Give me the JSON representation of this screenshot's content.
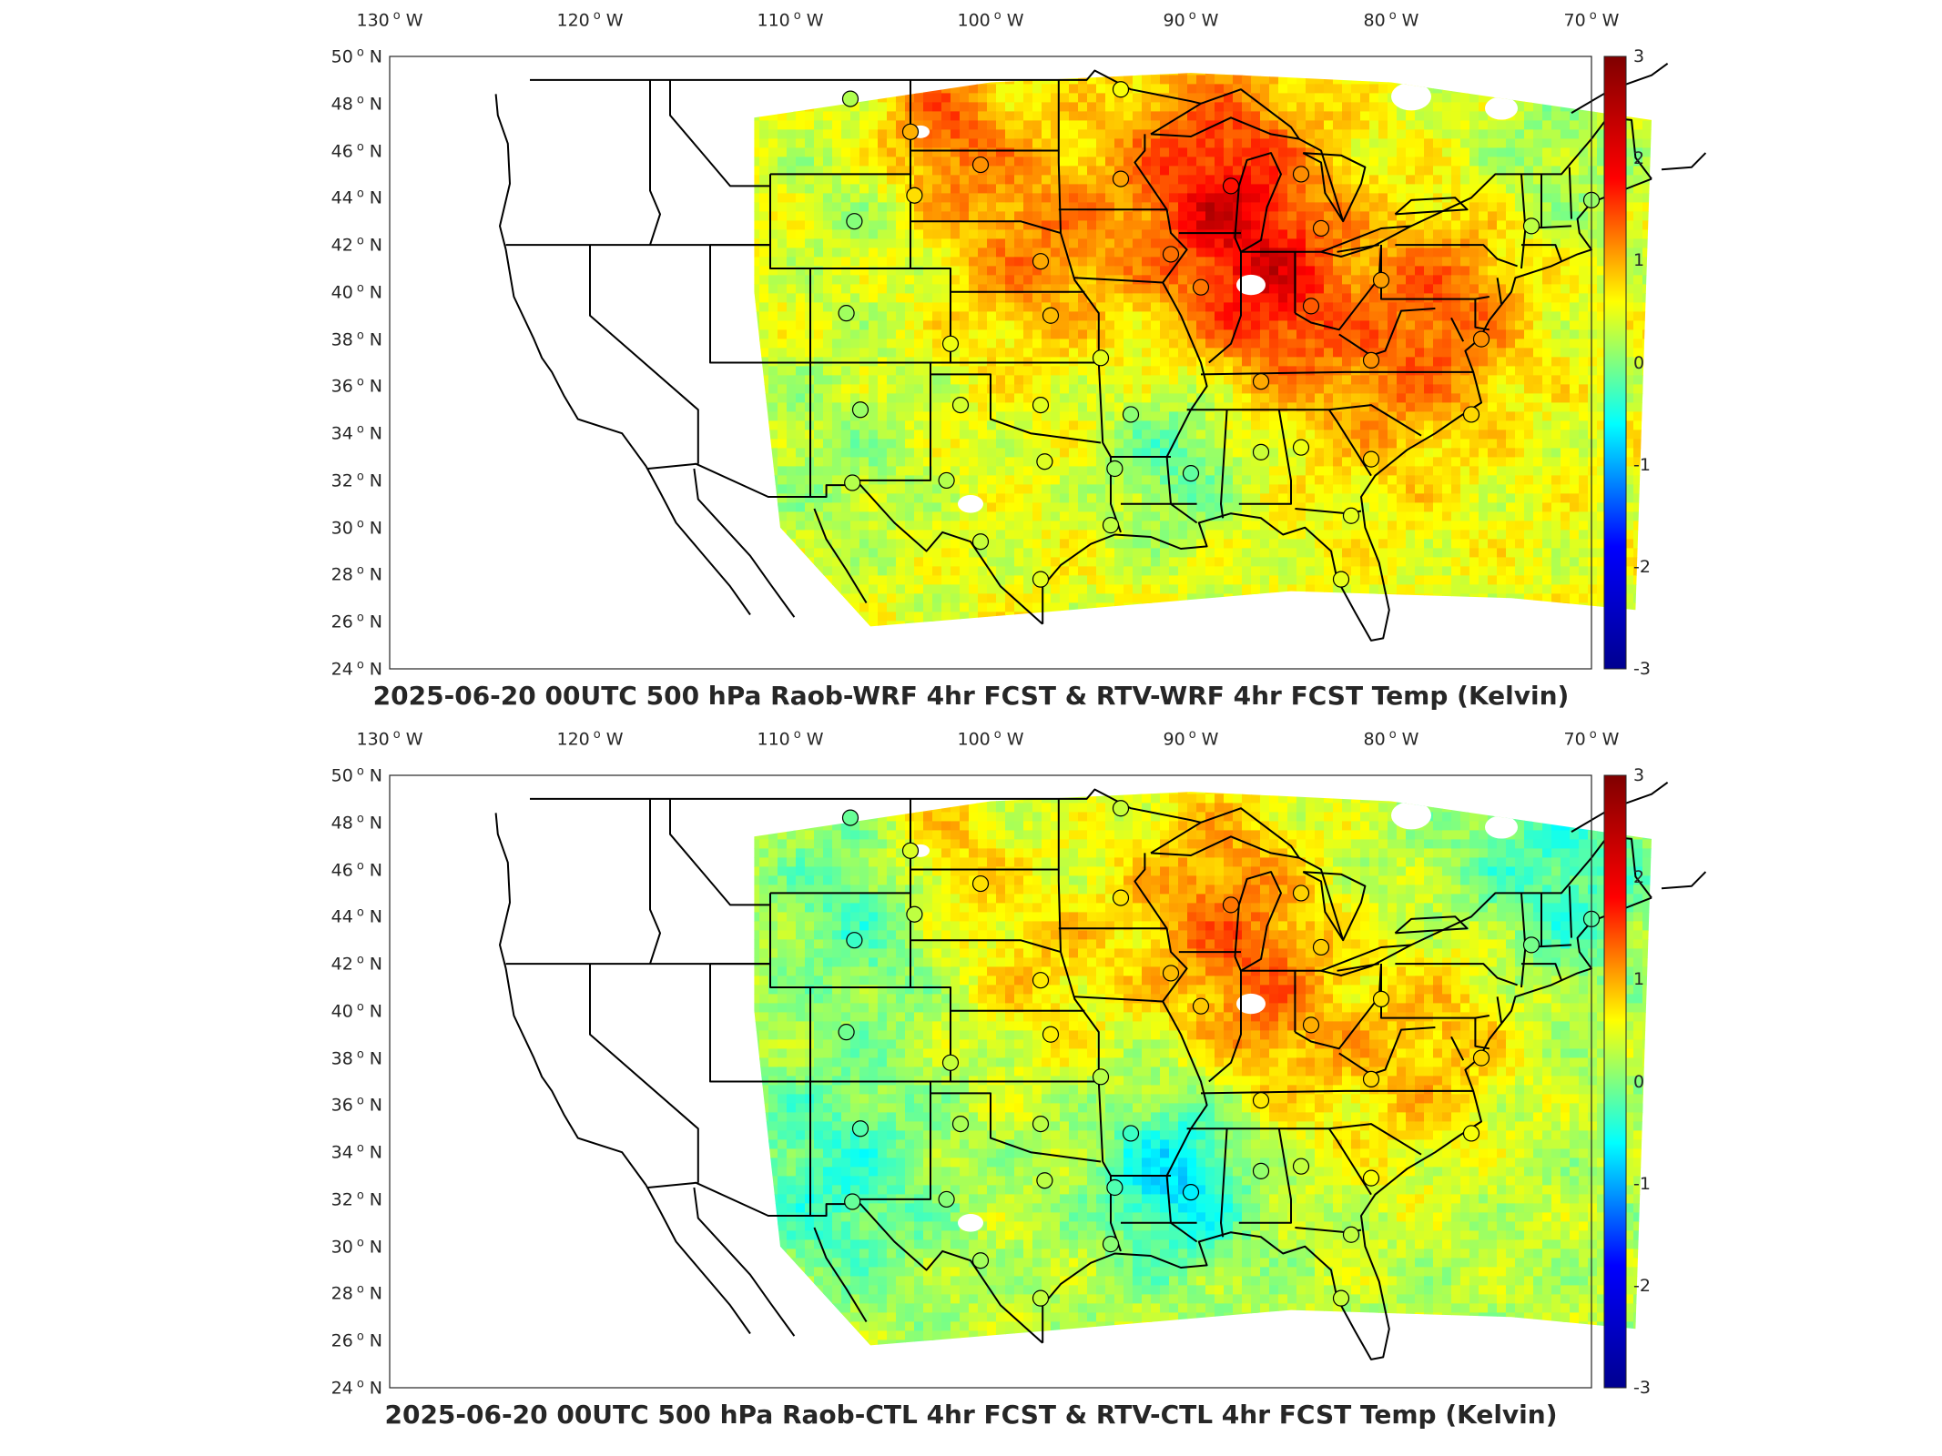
{
  "panels": [
    {
      "title": "2025-06-20 00UTC 500 hPa Raob-WRF 4hr FCST & RTV-WRF 4hr FCST Temp (Kelvin)",
      "variant": "wrf"
    },
    {
      "title": "2025-06-20 00UTC 500 hPa Raob-CTL 4hr FCST & RTV-CTL 4hr FCST Temp (Kelvin)",
      "variant": "ctl"
    }
  ],
  "map": {
    "lon_ticks": [
      "130",
      "120",
      "110",
      "100",
      "90",
      "80",
      "70"
    ],
    "lon_hemi": "W",
    "lat_ticks": [
      "50",
      "48",
      "46",
      "44",
      "42",
      "40",
      "38",
      "36",
      "34",
      "32",
      "30",
      "28",
      "26",
      "24"
    ],
    "lat_hemi": "N",
    "lon_range": [
      -130,
      -70
    ],
    "lat_range": [
      24,
      50
    ]
  },
  "colorbar": {
    "colormap": "jet",
    "ticks": [
      "3",
      "2",
      "1",
      "0",
      "-1",
      "-2",
      "-3"
    ],
    "range": [
      -3,
      3
    ],
    "colors": [
      "#00008f",
      "#0000ff",
      "#00ffff",
      "#ffff00",
      "#ff0000",
      "#800000"
    ]
  },
  "raob_sites": [
    {
      "lon": -107.0,
      "lat": 48.2
    },
    {
      "lon": -104.0,
      "lat": 46.8
    },
    {
      "lon": -100.5,
      "lat": 45.4
    },
    {
      "lon": -93.5,
      "lat": 48.6
    },
    {
      "lon": -93.5,
      "lat": 44.8
    },
    {
      "lon": -88.0,
      "lat": 44.5
    },
    {
      "lon": -84.5,
      "lat": 45.0
    },
    {
      "lon": -83.5,
      "lat": 42.7
    },
    {
      "lon": -106.8,
      "lat": 43.0
    },
    {
      "lon": -103.8,
      "lat": 44.1
    },
    {
      "lon": -97.5,
      "lat": 41.3
    },
    {
      "lon": -91.0,
      "lat": 41.6
    },
    {
      "lon": -89.5,
      "lat": 40.2
    },
    {
      "lon": -84.0,
      "lat": 39.4
    },
    {
      "lon": -80.5,
      "lat": 40.5
    },
    {
      "lon": -73.0,
      "lat": 42.8
    },
    {
      "lon": -70.0,
      "lat": 43.9
    },
    {
      "lon": -75.5,
      "lat": 38.0
    },
    {
      "lon": -107.2,
      "lat": 39.1
    },
    {
      "lon": -102.0,
      "lat": 37.8
    },
    {
      "lon": -97.0,
      "lat": 39.0
    },
    {
      "lon": -94.5,
      "lat": 37.2
    },
    {
      "lon": -86.5,
      "lat": 36.2
    },
    {
      "lon": -81.0,
      "lat": 37.1
    },
    {
      "lon": -106.5,
      "lat": 35.0
    },
    {
      "lon": -101.5,
      "lat": 35.2
    },
    {
      "lon": -97.5,
      "lat": 35.2
    },
    {
      "lon": -93.0,
      "lat": 34.8
    },
    {
      "lon": -76.0,
      "lat": 34.8
    },
    {
      "lon": -106.9,
      "lat": 31.9
    },
    {
      "lon": -102.2,
      "lat": 32.0
    },
    {
      "lon": -97.3,
      "lat": 32.8
    },
    {
      "lon": -93.8,
      "lat": 32.5
    },
    {
      "lon": -90.0,
      "lat": 32.3
    },
    {
      "lon": -86.5,
      "lat": 33.2
    },
    {
      "lon": -84.5,
      "lat": 33.4
    },
    {
      "lon": -81.0,
      "lat": 32.9
    },
    {
      "lon": -100.5,
      "lat": 29.4
    },
    {
      "lon": -94.0,
      "lat": 30.1
    },
    {
      "lon": -82.0,
      "lat": 30.5
    },
    {
      "lon": -97.5,
      "lat": 27.8
    },
    {
      "lon": -82.5,
      "lat": 27.8
    }
  ]
}
